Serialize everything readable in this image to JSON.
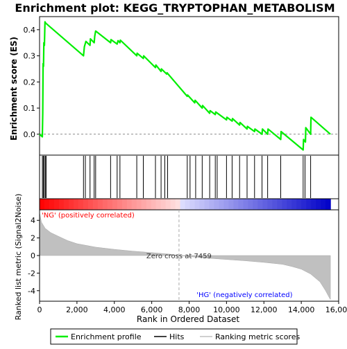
{
  "chart_data": {
    "type": "line",
    "title": "Enrichment plot: KEGG_TRYPTOPHAN_METABOLISM",
    "top_panel": {
      "ylabel": "Enrichment score (ES)",
      "ylim": [
        -0.08,
        0.45
      ],
      "yticks": [
        "0.0",
        "0.1",
        "0.2",
        "0.3",
        "0.4"
      ],
      "ytick_values": [
        0.0,
        0.1,
        0.2,
        0.3,
        0.4
      ],
      "series": [
        {
          "name": "Enrichment profile",
          "color": "#00ee00",
          "x": [
            0,
            150,
            170,
            190,
            210,
            230,
            260,
            290,
            330,
            2350,
            2400,
            2480,
            2700,
            2720,
            2920,
            2950,
            3000,
            3800,
            3820,
            4150,
            4200,
            4300,
            4320,
            5200,
            5220,
            5550,
            5570,
            6200,
            6220,
            6500,
            6520,
            6800,
            6820,
            7900,
            7920,
            8300,
            8320,
            8700,
            8720,
            9100,
            9120,
            9400,
            9420,
            10000,
            10020,
            10300,
            10320,
            10700,
            10720,
            11100,
            11120,
            11500,
            11520,
            11900,
            11920,
            12200,
            12220,
            12900,
            12920,
            14100,
            14120,
            14220,
            14240,
            14500,
            14520,
            15560
          ],
          "y": [
            0.0,
            -0.01,
            0.08,
            0.27,
            0.26,
            0.35,
            0.34,
            0.43,
            0.425,
            0.3,
            0.335,
            0.355,
            0.34,
            0.365,
            0.35,
            0.375,
            0.395,
            0.35,
            0.362,
            0.345,
            0.358,
            0.35,
            0.36,
            0.3,
            0.31,
            0.29,
            0.3,
            0.255,
            0.265,
            0.24,
            0.25,
            0.23,
            0.235,
            0.145,
            0.15,
            0.12,
            0.13,
            0.1,
            0.11,
            0.08,
            0.09,
            0.075,
            0.085,
            0.055,
            0.065,
            0.05,
            0.06,
            0.035,
            0.045,
            0.02,
            0.03,
            0.01,
            0.02,
            0.0,
            0.02,
            0.0,
            0.02,
            -0.02,
            0.01,
            -0.06,
            -0.02,
            -0.03,
            0.025,
            0.0,
            0.065,
            0.0
          ]
        }
      ],
      "zero_line": 0.0
    },
    "hits": {
      "name": "Hits",
      "x": [
        150,
        200,
        250,
        310,
        350,
        2350,
        2450,
        2700,
        2920,
        3000,
        3800,
        4150,
        4300,
        5200,
        5550,
        6200,
        6500,
        6700,
        6850,
        7900,
        8050,
        8350,
        8700,
        9100,
        9400,
        9500,
        10000,
        10300,
        10700,
        11100,
        11500,
        11900,
        12200,
        12900,
        14100,
        14200,
        14500
      ]
    },
    "bottom_panel": {
      "ylabel": "Ranked list metric (Signal2Noise)",
      "xlabel": "Rank in Ordered Dataset",
      "ylim": [
        -5.2,
        5.2
      ],
      "yticks": [
        "4",
        "2",
        "0",
        "-2",
        "-4"
      ],
      "ytick_values": [
        4,
        2,
        0,
        -2,
        -4
      ],
      "xlim": [
        0,
        16000
      ],
      "xticks": [
        "0",
        "2,000",
        "4,000",
        "6,000",
        "8,000",
        "10,000",
        "12,000",
        "14,000",
        "16,000"
      ],
      "xtick_values": [
        0,
        2000,
        4000,
        6000,
        8000,
        10000,
        12000,
        14000,
        16000
      ],
      "metric_curve": {
        "x": [
          0,
          100,
          300,
          600,
          1000,
          1500,
          2000,
          3000,
          4000,
          5000,
          6000,
          7000,
          7459,
          8000,
          9000,
          10000,
          11000,
          12000,
          13000,
          13500,
          14000,
          14500,
          15000,
          15300,
          15500,
          15560
        ],
        "y": [
          4.9,
          3.8,
          3.1,
          2.6,
          2.2,
          1.7,
          1.35,
          0.95,
          0.7,
          0.5,
          0.33,
          0.15,
          0.0,
          -0.12,
          -0.3,
          -0.45,
          -0.6,
          -0.78,
          -1.0,
          -1.25,
          -1.55,
          -2.1,
          -3.0,
          -4.0,
          -4.8,
          -5.0
        ]
      },
      "zero_cross_label": "Zero cross at 7459",
      "zero_cross_x": 7459,
      "pos_label": "'NG' (positively correlated)",
      "neg_label": "'HG' (negatively correlated)",
      "pos_label_color": "#ff0000",
      "neg_label_color": "#0000ff"
    },
    "legend": [
      {
        "label": "Enrichment profile",
        "color": "#00ee00"
      },
      {
        "label": "Hits",
        "color": "#000000"
      },
      {
        "label": "Ranking metric scores",
        "color": "#c0c0c0"
      }
    ],
    "n_genes": 15560,
    "grid": false,
    "legend_position": "bottom"
  }
}
